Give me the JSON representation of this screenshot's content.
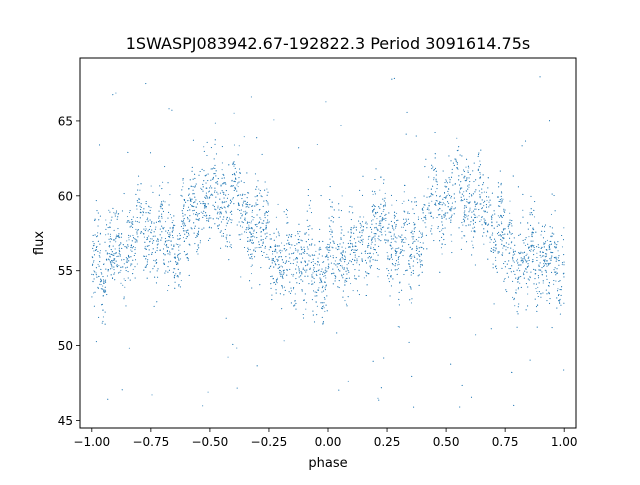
{
  "chart_data": {
    "type": "scatter",
    "title": "1SWASPJ083942.67-192822.3 Period 3091614.75s",
    "xlabel": "phase",
    "ylabel": "flux",
    "xlim": [
      -1.05,
      1.05
    ],
    "ylim": [
      44.5,
      69.2
    ],
    "xticks": [
      -1.0,
      -0.75,
      -0.5,
      -0.25,
      0.0,
      0.25,
      0.5,
      0.75,
      1.0
    ],
    "xtick_labels": [
      "−1.00",
      "−0.75",
      "−0.50",
      "−0.25",
      "0.00",
      "0.25",
      "0.50",
      "0.75",
      "1.00"
    ],
    "yticks": [
      45,
      50,
      55,
      60,
      65
    ],
    "ytick_labels": [
      "45",
      "50",
      "55",
      "60",
      "65"
    ],
    "grid": false,
    "legend": "none",
    "marker_color": "#1f77b4",
    "marker": "tiny dots",
    "x_range": [
      -1.0,
      1.0
    ],
    "profile_phase": [
      -1.0,
      -0.95,
      -0.9,
      -0.85,
      -0.8,
      -0.75,
      -0.7,
      -0.65,
      -0.6,
      -0.55,
      -0.5,
      -0.45,
      -0.4,
      -0.35,
      -0.3,
      -0.25,
      -0.2,
      -0.15,
      -0.1,
      -0.05,
      0.0
    ],
    "profile_flux": [
      55.5,
      55.5,
      56.2,
      56.5,
      57.8,
      57.5,
      57.0,
      56.8,
      58.0,
      59.5,
      59.5,
      60.0,
      59.8,
      59.0,
      58.2,
      57.0,
      55.2,
      55.5,
      56.0,
      55.0,
      55.0
    ],
    "scatter_range_core": [
      53.0,
      61.0
    ],
    "outlier_range": [
      45.5,
      68.0
    ],
    "repeats_with_period": 1.0,
    "approx_point_count": 6000
  }
}
